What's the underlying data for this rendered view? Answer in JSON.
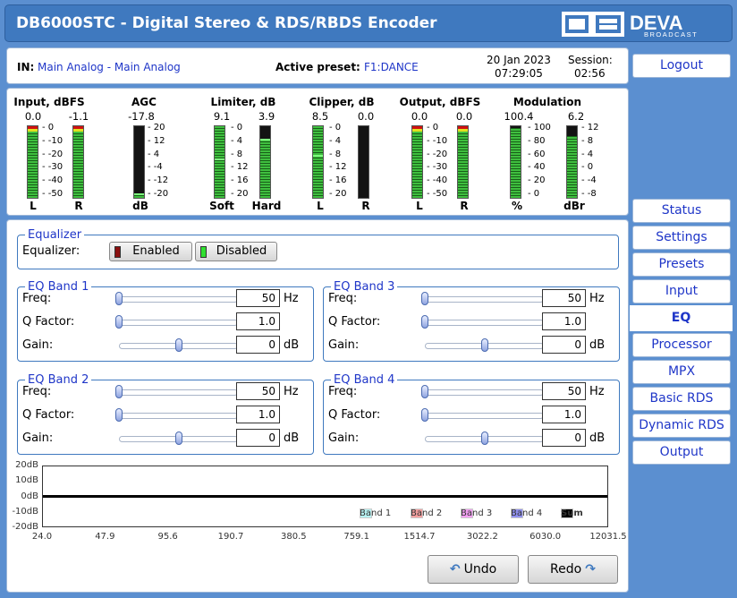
{
  "app": {
    "title": "DB6000STC - Digital Stereo & RDS/RBDS Encoder",
    "brand": "DEVA",
    "brand_sub": "BROADCAST"
  },
  "info": {
    "in_label": "IN:",
    "in_value": "Main Analog - Main Analog",
    "preset_label": "Active preset:",
    "preset_value": "F1:DANCE",
    "date": "20 Jan 2023",
    "time": "07:29:05",
    "session_label": "Session:",
    "session_value": "02:56"
  },
  "meters": {
    "input": {
      "title": "Input, dBFS",
      "values": [
        "0.0",
        "-1.1"
      ],
      "levels": [
        1.0,
        0.98
      ],
      "ticks": [
        "0",
        "-10",
        "-20",
        "-30",
        "-40",
        "-50"
      ],
      "labels": [
        "L",
        "R"
      ]
    },
    "agc": {
      "title": "AGC",
      "value": "-17.8",
      "level": 0.06,
      "ticks": [
        "20",
        "12",
        "4",
        "-4",
        "-12",
        "-20"
      ],
      "label": "dB"
    },
    "limiter": {
      "title": "Limiter, dB",
      "values": [
        "9.1",
        "3.9"
      ],
      "levels": [
        0.55,
        0.82
      ],
      "ticks": [
        "0",
        "4",
        "8",
        "12",
        "16",
        "20"
      ],
      "labels": [
        "Soft",
        "Hard"
      ]
    },
    "clipper": {
      "title": "Clipper, dB",
      "values": [
        "8.5",
        "0.0"
      ],
      "levels": [
        0.6,
        0.0
      ],
      "ticks": [
        "0",
        "4",
        "8",
        "12",
        "16",
        "20"
      ],
      "labels": [
        "L",
        "R"
      ]
    },
    "output": {
      "title": "Output, dBFS",
      "values": [
        "0.0",
        "0.0"
      ],
      "levels": [
        1.0,
        1.0
      ],
      "ticks": [
        "0",
        "-10",
        "-20",
        "-30",
        "-40",
        "-50"
      ],
      "labels": [
        "L",
        "R"
      ]
    },
    "modulation": {
      "title": "Modulation",
      "values": [
        "100.4",
        "6.2"
      ],
      "levels": [
        0.98,
        0.86
      ],
      "ticks_left": [
        "100",
        "80",
        "60",
        "40",
        "20",
        "0"
      ],
      "ticks_right": [
        "12",
        "8",
        "4",
        "0",
        "-4",
        "-8"
      ],
      "labels": [
        "%",
        "dBr"
      ]
    }
  },
  "equalizer": {
    "section_title": "Equalizer",
    "label": "Equalizer:",
    "enabled_label": "Enabled",
    "disabled_label": "Disabled",
    "bands": [
      {
        "title": "EQ Band 1",
        "freq": "50",
        "freq_unit": "Hz",
        "q": "1.0",
        "gain": "0",
        "gain_unit": "dB",
        "freq_pos": 0.0,
        "q_pos": 0.0,
        "gain_pos": 0.5
      },
      {
        "title": "EQ Band 2",
        "freq": "50",
        "freq_unit": "Hz",
        "q": "1.0",
        "gain": "0",
        "gain_unit": "dB",
        "freq_pos": 0.0,
        "q_pos": 0.0,
        "gain_pos": 0.5
      },
      {
        "title": "EQ Band 3",
        "freq": "50",
        "freq_unit": "Hz",
        "q": "1.0",
        "gain": "0",
        "gain_unit": "dB",
        "freq_pos": 0.0,
        "q_pos": 0.0,
        "gain_pos": 0.5
      },
      {
        "title": "EQ Band 4",
        "freq": "50",
        "freq_unit": "Hz",
        "q": "1.0",
        "gain": "0",
        "gain_unit": "dB",
        "freq_pos": 0.0,
        "q_pos": 0.0,
        "gain_pos": 0.5
      }
    ],
    "row_labels": {
      "freq": "Freq:",
      "q": "Q Factor:",
      "gain": "Gain:"
    }
  },
  "graph": {
    "y_labels": [
      "20dB",
      "10dB",
      "0dB",
      "-10dB",
      "-20dB"
    ],
    "x_labels": [
      "24.0",
      "47.9",
      "95.6",
      "190.7",
      "380.5",
      "759.1",
      "1514.7",
      "3022.2",
      "6030.0",
      "12031.5"
    ],
    "legend": [
      {
        "name": "Band 1",
        "color": "#b8f4f4"
      },
      {
        "name": "Band 2",
        "color": "#f4a0a0"
      },
      {
        "name": "Band 3",
        "color": "#f4a0f4"
      },
      {
        "name": "Band 4",
        "color": "#9090f0"
      },
      {
        "name": "Sum",
        "color": "#000000"
      }
    ]
  },
  "actions": {
    "undo": "Undo",
    "redo": "Redo"
  },
  "nav": {
    "logout": "Logout",
    "items": [
      "Status",
      "Settings",
      "Presets",
      "Input",
      "EQ",
      "Processor",
      "MPX",
      "Basic RDS",
      "Dynamic RDS",
      "Output"
    ],
    "active": "EQ"
  },
  "colors": {
    "header": "#3f79bf",
    "background": "#5b8fd0",
    "accent": "#1f36c8"
  }
}
